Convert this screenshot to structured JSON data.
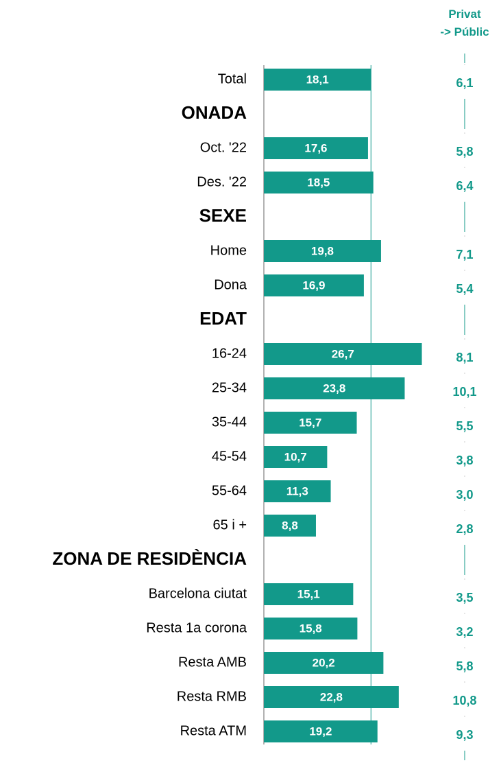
{
  "chart_data": {
    "type": "bar",
    "categories": [
      "Total",
      "ONADA",
      "Oct. '22",
      "Des. '22",
      "SEXE",
      "Home",
      "Dona",
      "EDAT",
      "16-24",
      "25-34",
      "35-44",
      "45-54",
      "55-64",
      "65 i +",
      "ZONA DE RESIDÈNCIA",
      "Barcelona ciutat",
      "Resta 1a corona",
      "Resta AMB",
      "Resta RMB",
      "Resta ATM"
    ],
    "values": [
      18.1,
      null,
      17.6,
      18.5,
      null,
      19.8,
      16.9,
      null,
      26.7,
      23.8,
      15.7,
      10.7,
      11.3,
      8.8,
      null,
      15.1,
      15.8,
      20.2,
      22.8,
      19.2
    ],
    "value_labels": [
      "18,1",
      null,
      "17,6",
      "18,5",
      null,
      "19,8",
      "16,9",
      null,
      "26,7",
      "23,8",
      "15,7",
      "10,7",
      "11,3",
      "8,8",
      null,
      "15,1",
      "15,8",
      "20,2",
      "22,8",
      "19,2"
    ],
    "color": "#12998a",
    "xlim": [
      0,
      30
    ],
    "extra_column": {
      "title": "Privat\n-> Públic",
      "values": [
        6.1,
        null,
        5.8,
        6.4,
        null,
        7.1,
        5.4,
        null,
        8.1,
        10.1,
        5.5,
        3.8,
        3.0,
        2.8,
        null,
        3.5,
        3.2,
        5.8,
        10.8,
        9.3
      ],
      "value_labels": [
        "6,1",
        null,
        "5,8",
        "6,4",
        null,
        "7,1",
        "5,4",
        null,
        "8,1",
        "10,1",
        "5,5",
        "3,8",
        "3,0",
        "2,8",
        null,
        "3,5",
        "3,2",
        "5,8",
        "10,8",
        "9,3"
      ]
    }
  }
}
